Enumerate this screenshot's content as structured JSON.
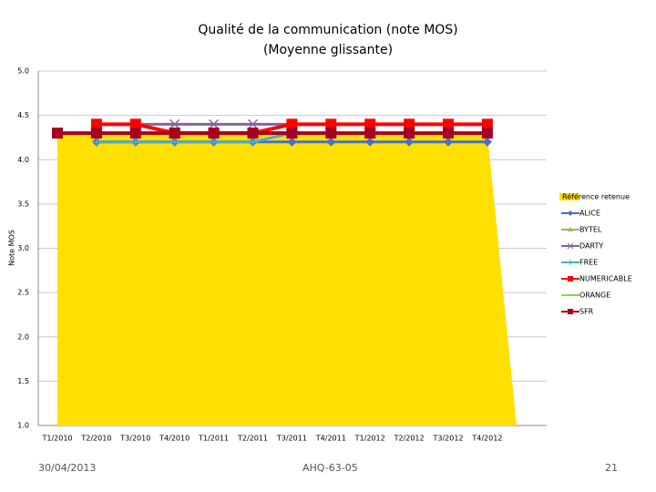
{
  "chart_data": {
    "type": "line",
    "title": "Qualité de la communication (note MOS)",
    "subtitle": "(Moyenne glissante)",
    "ylabel": "Note MOS",
    "categories": [
      "T1/2010",
      "T2/2010",
      "T3/2010",
      "T4/2010",
      "T1/2011",
      "T2/2011",
      "T3/2011",
      "T4/2011",
      "T1/2012",
      "T2/2012",
      "T3/2012",
      "T4/2012"
    ],
    "ylim": [
      1.0,
      5.0
    ],
    "yticks": [
      {
        "value": 1.0,
        "label": "1.0"
      },
      {
        "value": 1.5,
        "label": "1.5"
      },
      {
        "value": 2.0,
        "label": "2.0"
      },
      {
        "value": 2.5,
        "label": "2.5"
      },
      {
        "value": 3.0,
        "label": "3.0"
      },
      {
        "value": 3.5,
        "label": "3.5"
      },
      {
        "value": 4.0,
        "label": "4.0"
      },
      {
        "value": 4.5,
        "label": "4.5"
      },
      {
        "value": 5.0,
        "label": "5.0"
      }
    ],
    "grid": true,
    "legend": "right",
    "series": [
      {
        "name": "Référence retenue",
        "kind": "area",
        "color": "#ffe000",
        "values": [
          4.3,
          4.3,
          4.3,
          4.3,
          4.3,
          4.3,
          4.3,
          4.3,
          4.3,
          4.3,
          4.3,
          4.3
        ]
      },
      {
        "name": "ALICE",
        "marker": "diamond",
        "color": "#4472c4",
        "values": [
          null,
          4.2,
          4.2,
          4.2,
          4.2,
          4.2,
          4.2,
          4.2,
          4.2,
          4.2,
          4.2,
          4.2
        ]
      },
      {
        "name": "BYTEL",
        "marker": "triangle",
        "color": "#9bbb59",
        "values": [
          null,
          4.3,
          4.3,
          4.3,
          4.3,
          4.3,
          4.3,
          4.3,
          4.3,
          4.3,
          4.3,
          4.3
        ]
      },
      {
        "name": "DARTY",
        "marker": "x",
        "color": "#8064a2",
        "values": [
          null,
          4.4,
          4.4,
          4.4,
          4.4,
          4.4,
          4.4,
          4.4,
          4.4,
          4.4,
          4.4,
          4.4
        ]
      },
      {
        "name": "FREE",
        "marker": "plus",
        "color": "#4bacc6",
        "values": [
          null,
          4.2,
          4.2,
          4.2,
          4.2,
          4.2,
          4.3,
          4.3,
          4.3,
          4.3,
          4.3,
          4.3
        ]
      },
      {
        "name": "NUMERICABLE",
        "marker": "square",
        "color": "#ff0000",
        "values": [
          null,
          4.4,
          4.4,
          4.3,
          4.3,
          4.3,
          4.4,
          4.4,
          4.4,
          4.4,
          4.4,
          4.4
        ]
      },
      {
        "name": "ORANGE",
        "marker": "none",
        "color": "#92d050",
        "values": [
          null,
          4.3,
          4.3,
          4.3,
          4.3,
          4.3,
          4.3,
          4.3,
          4.3,
          4.3,
          4.3,
          4.3
        ]
      },
      {
        "name": "SFR",
        "marker": "square",
        "color": "#a50021",
        "values": [
          4.3,
          4.3,
          4.3,
          4.3,
          4.3,
          4.3,
          4.3,
          4.3,
          4.3,
          4.3,
          4.3,
          4.3
        ]
      }
    ]
  },
  "footer": {
    "date": "30/04/2013",
    "reference": "AHQ-63-05",
    "page": "21"
  }
}
